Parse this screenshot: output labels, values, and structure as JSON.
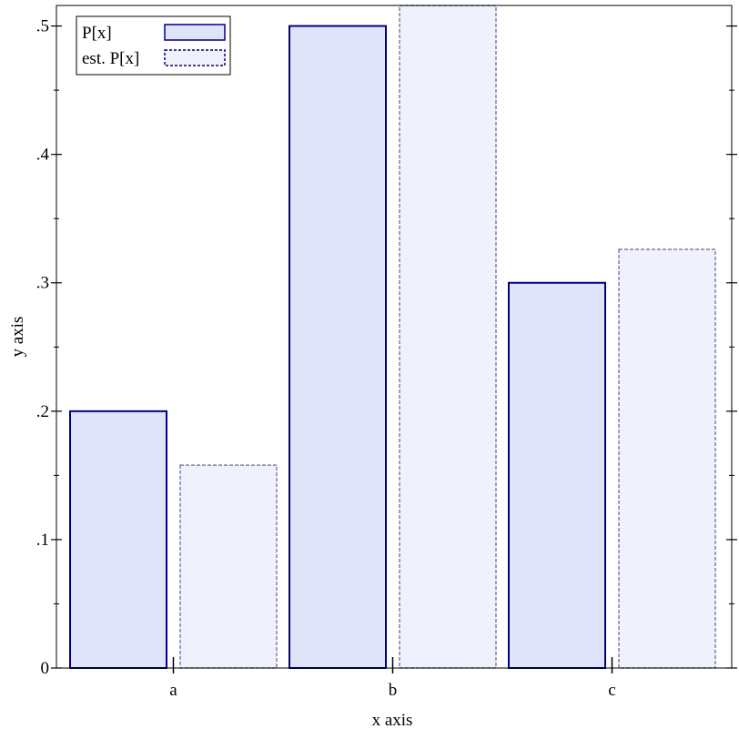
{
  "chart_data": {
    "type": "bar",
    "categories": [
      "a",
      "b",
      "c"
    ],
    "series": [
      {
        "name": "P[x]",
        "values": [
          0.2,
          0.5,
          0.3
        ],
        "fill": "#e0e4fa",
        "stroke": "#00007f",
        "dashed": false
      },
      {
        "name": "est. P[x]",
        "values": [
          0.158,
          0.516,
          0.326
        ],
        "fill": "#eff1fd",
        "stroke": "#7f7fb0",
        "dashed": true
      }
    ],
    "xlabel": "x axis",
    "ylabel": "y axis",
    "ylim": [
      0,
      0.516
    ],
    "y_ticks": [
      {
        "value": 0,
        "label": "0"
      },
      {
        "value": 0.1,
        "label": ".1"
      },
      {
        "value": 0.2,
        "label": ".2"
      },
      {
        "value": 0.3,
        "label": ".3"
      },
      {
        "value": 0.4,
        "label": ".4"
      },
      {
        "value": 0.5,
        "label": ".5"
      }
    ],
    "y_minor_ticks": [
      0.05,
      0.15,
      0.25,
      0.35,
      0.45
    ],
    "legend_position": "top-left",
    "grid": false
  }
}
